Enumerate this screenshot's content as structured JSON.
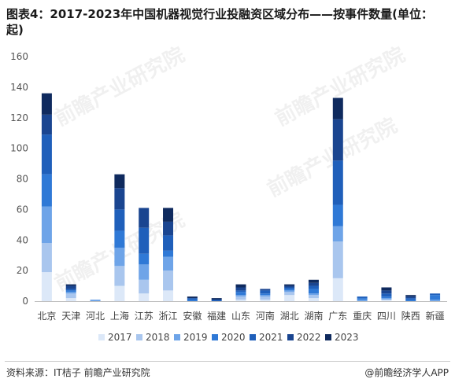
{
  "title": "图表4：2017-2023年中国机器视觉行业投融资区域分布——按事件数量(单位：起)",
  "source": "资料来源：IT桔子 前瞻产业研究院",
  "credit": "@前瞻经济学人APP",
  "watermark": "前瞻产业研究院",
  "chart_data": {
    "type": "bar",
    "stacked": true,
    "title": "图表4：2017-2023年中国机器视觉行业投融资区域分布——按事件数量(单位：起)",
    "xlabel": "",
    "ylabel": "",
    "ylim": [
      0,
      160
    ],
    "yticks": [
      0,
      20,
      40,
      60,
      80,
      100,
      120,
      140,
      160
    ],
    "grid": false,
    "legend_position": "bottom",
    "categories": [
      "北京",
      "天津",
      "河北",
      "上海",
      "江苏",
      "浙江",
      "安徽",
      "福建",
      "山东",
      "河南",
      "湖北",
      "湖南",
      "广东",
      "重庆",
      "四川",
      "陕西",
      "新疆"
    ],
    "series": [
      {
        "name": "2017",
        "color": "#dce8f8",
        "values": [
          19,
          2,
          0,
          10,
          5,
          7,
          0,
          0,
          1,
          1,
          4,
          2,
          15,
          0,
          1,
          0,
          0
        ]
      },
      {
        "name": "2018",
        "color": "#a9c6ee",
        "values": [
          19,
          3,
          0,
          13,
          9,
          13,
          0,
          0,
          2,
          2,
          2,
          2,
          24,
          0,
          0,
          0,
          0
        ]
      },
      {
        "name": "2019",
        "color": "#6ea4e8",
        "values": [
          24,
          1,
          1,
          12,
          10,
          9,
          0,
          0,
          1,
          1,
          1,
          1,
          10,
          1,
          1,
          0,
          1
        ]
      },
      {
        "name": "2020",
        "color": "#2f79d6",
        "values": [
          21,
          1,
          0,
          11,
          7,
          4,
          1,
          0,
          2,
          1,
          1,
          3,
          14,
          1,
          1,
          1,
          3
        ]
      },
      {
        "name": "2021",
        "color": "#1f5fba",
        "values": [
          26,
          1,
          0,
          14,
          17,
          10,
          1,
          1,
          1,
          2,
          1,
          2,
          29,
          1,
          2,
          1,
          1
        ]
      },
      {
        "name": "2022",
        "color": "#1a4590",
        "values": [
          13,
          2,
          0,
          14,
          13,
          9,
          0,
          0,
          2,
          1,
          1,
          2,
          27,
          0,
          2,
          1,
          0
        ]
      },
      {
        "name": "2023",
        "color": "#0f2a5e",
        "values": [
          14,
          1,
          0,
          9,
          0,
          9,
          1,
          1,
          2,
          0,
          1,
          2,
          14,
          0,
          2,
          1,
          0
        ]
      }
    ]
  }
}
